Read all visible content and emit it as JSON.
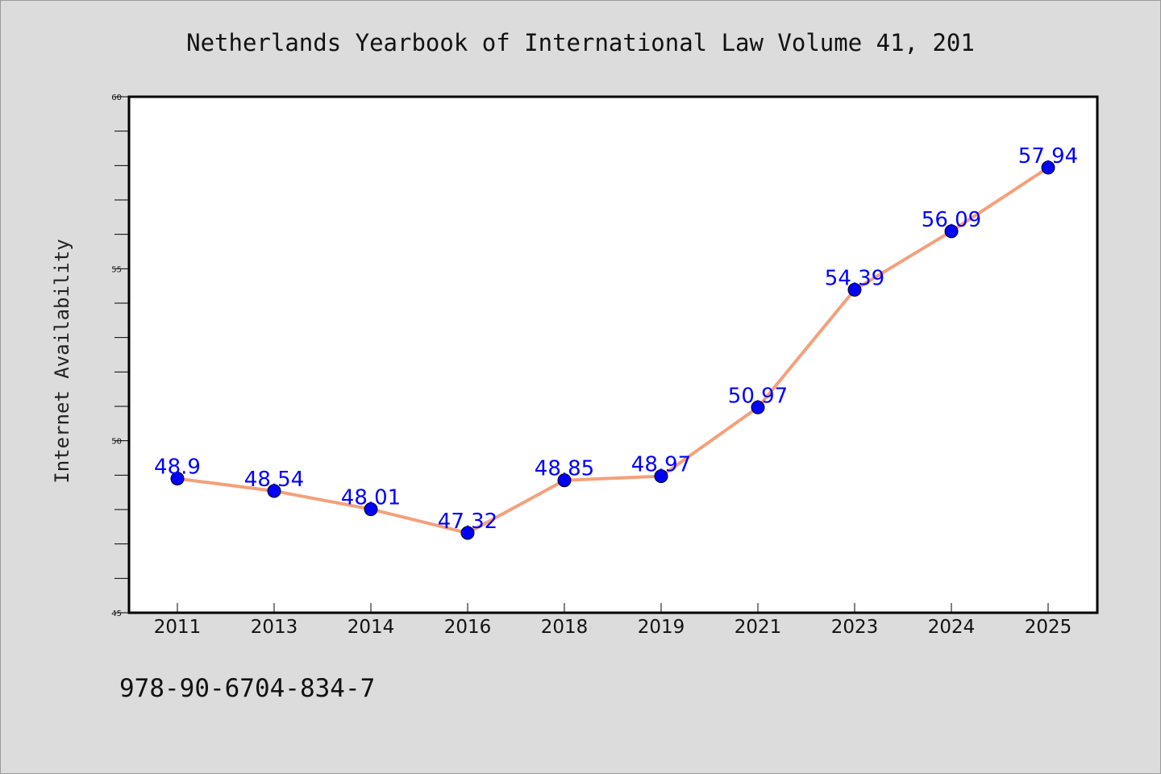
{
  "chart_data": {
    "type": "line",
    "title": "Netherlands Yearbook of International Law Volume 41, 201",
    "xlabel": "",
    "ylabel": "Internet Availability",
    "categories": [
      "2011",
      "2013",
      "2014",
      "2016",
      "2018",
      "2019",
      "2021",
      "2023",
      "2024",
      "2025"
    ],
    "series": [
      {
        "values": [
          48.9,
          48.54,
          48.01,
          47.32,
          48.85,
          48.97,
          50.97,
          54.39,
          56.09,
          57.94
        ],
        "labels": [
          "48.9",
          "48.54",
          "48.01",
          "47.32",
          "48.85",
          "48.97",
          "50.97",
          "54.39",
          "56.09",
          "57.94"
        ]
      }
    ],
    "ylim": [
      45,
      60
    ],
    "yticks": [
      "45",
      "50",
      "55",
      "60"
    ],
    "grid": false,
    "legend": "none",
    "line_color": "#f4a07c",
    "marker_color": "#0000ff",
    "label_color": "#0000ff"
  },
  "footer": {
    "text": "978-90-6704-834-7"
  }
}
